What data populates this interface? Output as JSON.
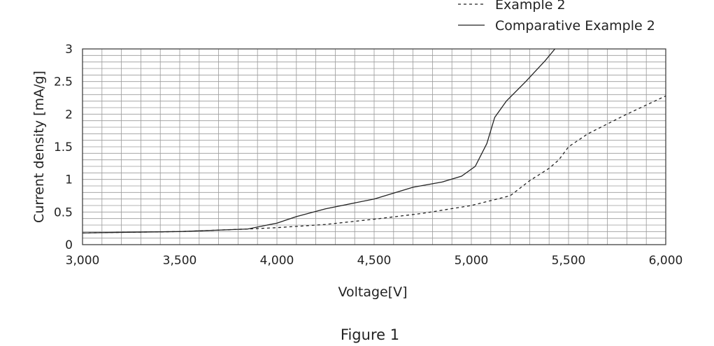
{
  "chart_data": {
    "type": "line",
    "title": "",
    "xlabel": "Voltage[V]",
    "ylabel": "Current density [mA/g]",
    "xlim": [
      3000,
      6000
    ],
    "ylim": [
      0,
      3
    ],
    "grid": true,
    "legend_position": "top-right",
    "x_ticks": [
      "3,000",
      "3,500",
      "4,000",
      "4,500",
      "5,000",
      "5,500",
      "6,000"
    ],
    "y_ticks": [
      "0",
      "0.5",
      "1",
      "1.5",
      "2",
      "2.5",
      "3"
    ],
    "series": [
      {
        "name": "Example 2",
        "style": "dashed",
        "x": [
          3000,
          3500,
          3850,
          4000,
          4250,
          4500,
          4750,
          5000,
          5200,
          5300,
          5400,
          5450,
          5500,
          5600,
          5800,
          6000
        ],
        "y": [
          0.18,
          0.2,
          0.24,
          0.26,
          0.31,
          0.39,
          0.48,
          0.6,
          0.75,
          0.98,
          1.17,
          1.3,
          1.5,
          1.7,
          2.0,
          2.28
        ]
      },
      {
        "name": "Comparative Example 2",
        "style": "solid",
        "x": [
          3000,
          3500,
          3850,
          4000,
          4100,
          4250,
          4500,
          4700,
          4850,
          4950,
          5020,
          5080,
          5120,
          5180,
          5280,
          5380,
          5430
        ],
        "y": [
          0.18,
          0.2,
          0.24,
          0.33,
          0.43,
          0.55,
          0.7,
          0.88,
          0.96,
          1.05,
          1.2,
          1.55,
          1.95,
          2.2,
          2.5,
          2.82,
          3.0
        ]
      }
    ]
  },
  "caption": "Figure 1",
  "colors": {
    "line": "#222222",
    "grid": "#9a9a9a",
    "axis": "#333333"
  }
}
